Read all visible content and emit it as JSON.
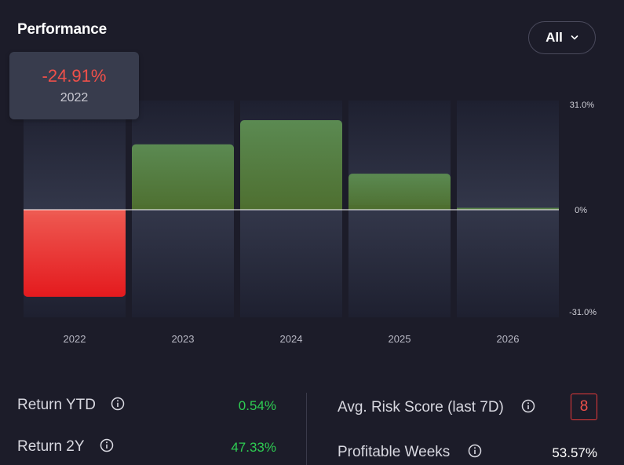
{
  "header": {
    "title": "Performance",
    "range_selector": "All"
  },
  "tooltip": {
    "value": "-24.91%",
    "label": "2022"
  },
  "chart_data": {
    "type": "bar",
    "categories": [
      "2022",
      "2023",
      "2024",
      "2025",
      "2026"
    ],
    "values": [
      -24.91,
      18.7,
      25.6,
      10.3,
      0.54
    ],
    "ylim": [
      -31.0,
      31.0
    ],
    "y_ticks": [
      "31.0%",
      "0%",
      "-31.0%"
    ],
    "highlighted": "2022",
    "colors": {
      "positive": "#577c46",
      "negative": "#e9252a",
      "column_bg": "#2c2f3e"
    }
  },
  "stats": {
    "return_ytd": {
      "label": "Return YTD",
      "value": "0.54%",
      "color": "#2ecc52"
    },
    "return_2y": {
      "label": "Return 2Y",
      "value": "47.33%",
      "color": "#2ecc52"
    },
    "risk_score": {
      "label": "Avg. Risk Score (last 7D)",
      "value": "8",
      "color": "#f0504a"
    },
    "profitable_weeks": {
      "label": "Profitable Weeks",
      "value": "53.57%",
      "color": "#ffffff"
    }
  }
}
